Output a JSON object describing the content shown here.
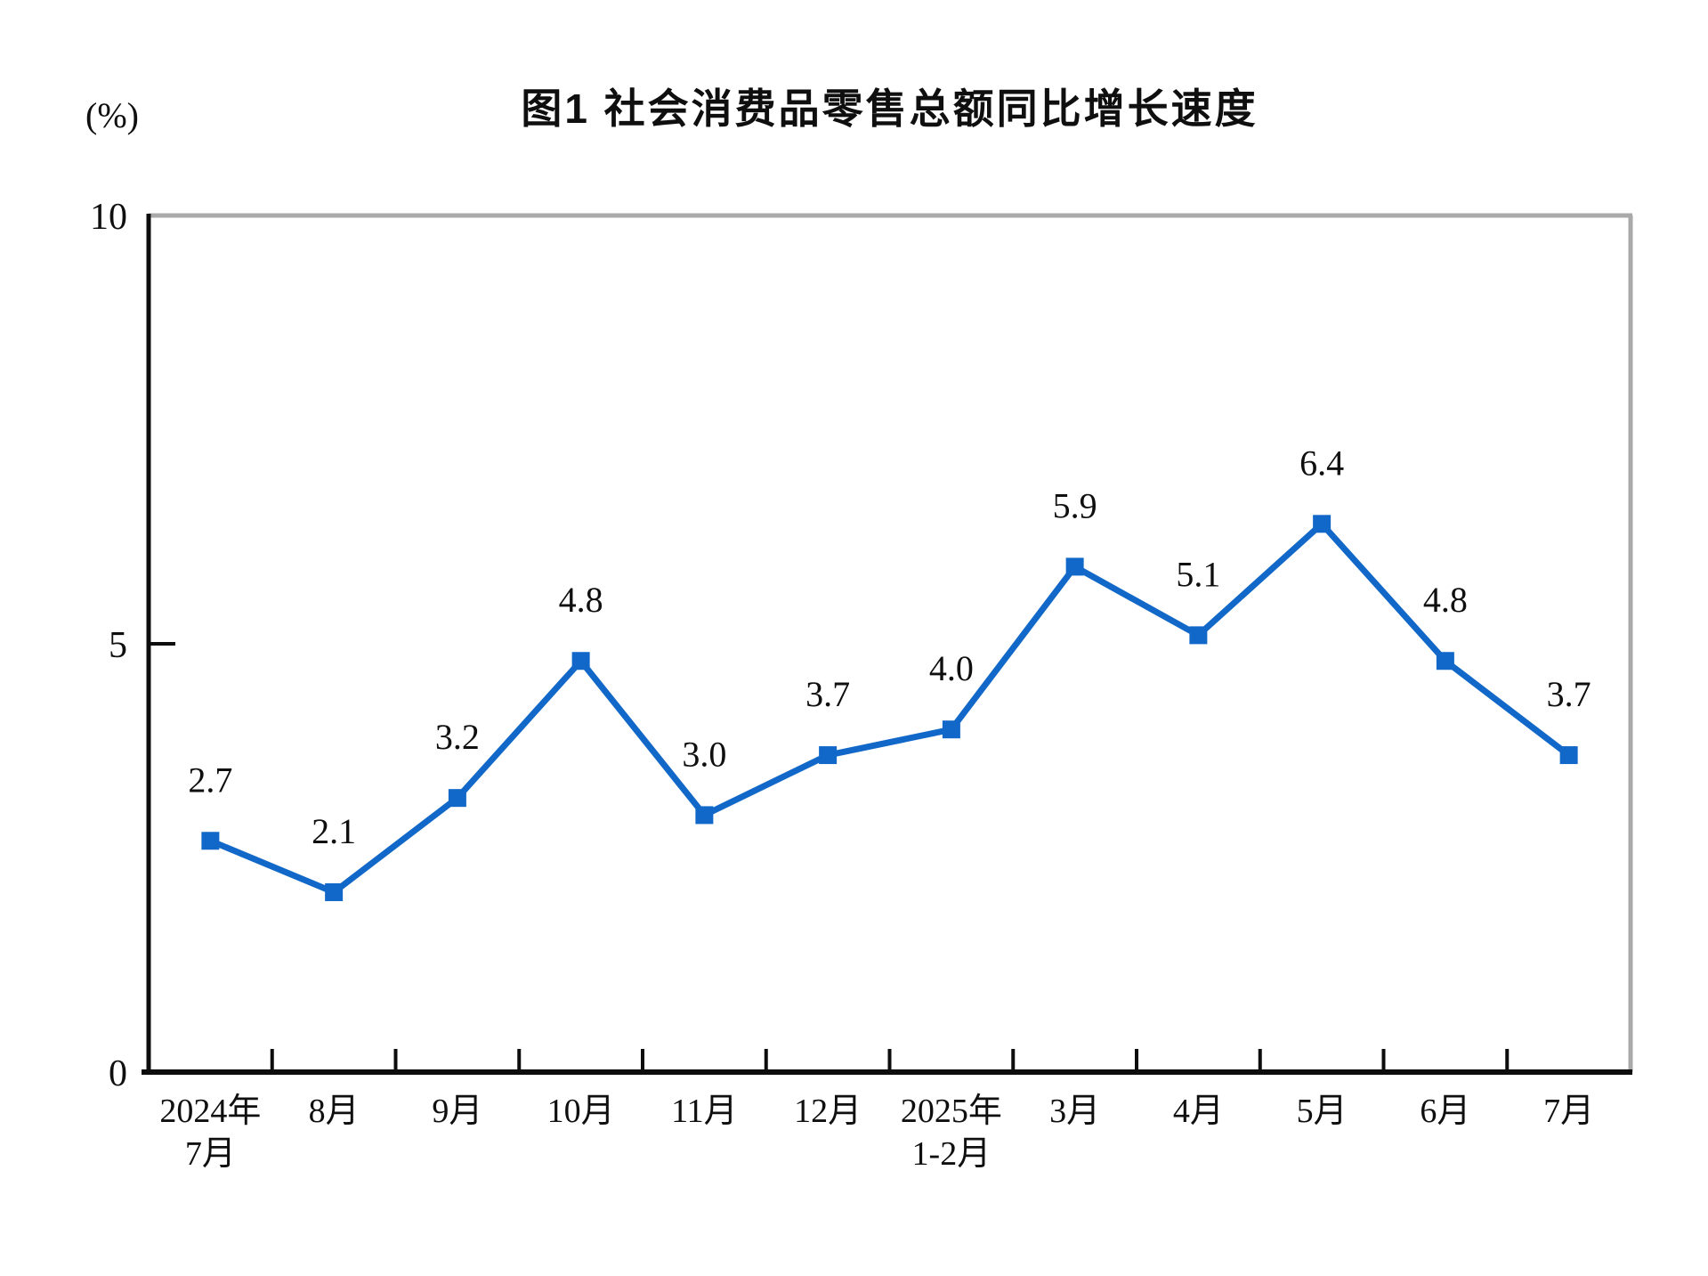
{
  "chart_data": {
    "type": "line",
    "title": "图1 社会消费品零售总额同比增长速度",
    "unit_label": "(%)",
    "categories": [
      "2024年\n7月",
      "8月",
      "9月",
      "10月",
      "11月",
      "12月",
      "2025年\n1-2月",
      "3月",
      "4月",
      "5月",
      "6月",
      "7月"
    ],
    "series": [
      {
        "name": "社会消费品零售总额同比增长速度",
        "values": [
          2.7,
          2.1,
          3.2,
          4.8,
          3.0,
          3.7,
          4.0,
          5.9,
          5.1,
          6.4,
          4.8,
          3.7
        ],
        "data_labels": [
          "2.7",
          "2.1",
          "3.2",
          "4.8",
          "3.0",
          "3.7",
          "4.0",
          "5.9",
          "5.1",
          "6.4",
          "4.8",
          "3.7"
        ]
      }
    ],
    "ylim": [
      0,
      10
    ],
    "yticks": [
      0,
      5,
      10
    ],
    "grid": false,
    "legend": false,
    "marker": "square",
    "colors": {
      "series": "#1268c8",
      "axis": "#0d0d0d",
      "frame": "#a9a9a9",
      "text": "#0f0f0f"
    }
  }
}
